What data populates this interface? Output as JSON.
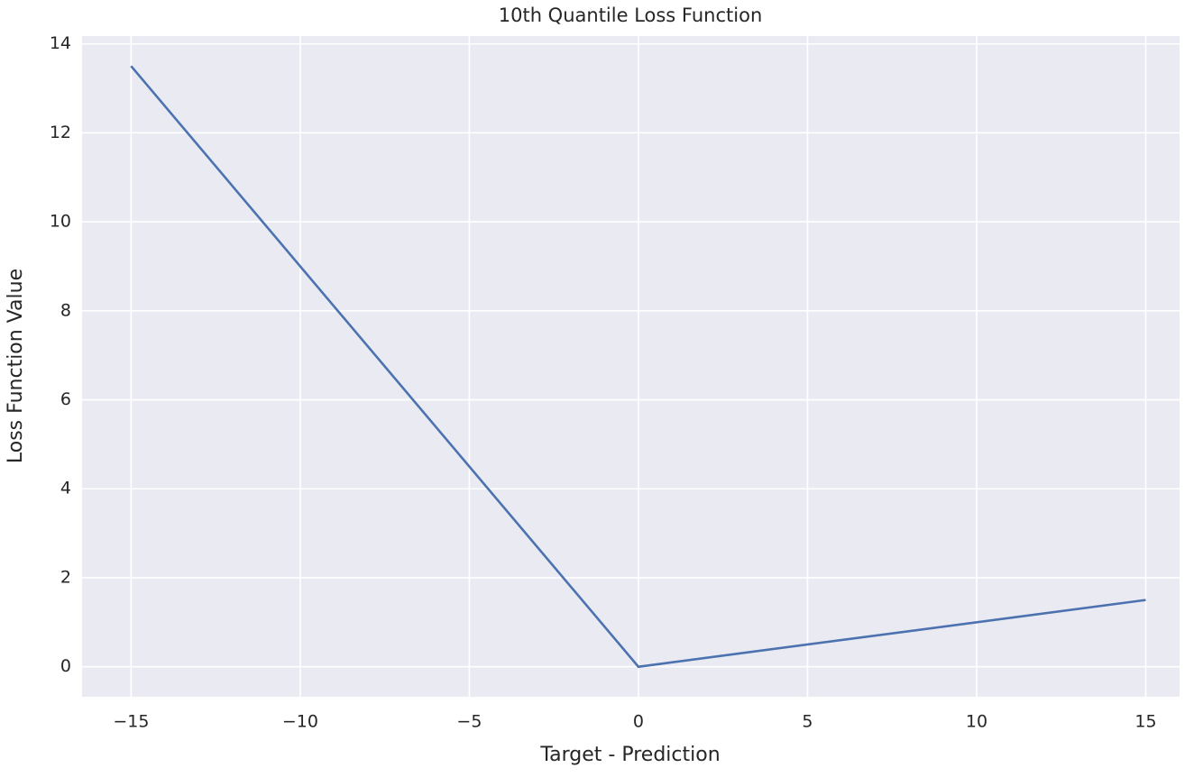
{
  "chart_data": {
    "type": "line",
    "title": "10th Quantile Loss Function",
    "xlabel": "Target - Prediction",
    "ylabel": "Loss Function Value",
    "x": [
      -15,
      0,
      15
    ],
    "series": [
      {
        "name": "loss",
        "color": "#4c72b0",
        "values": [
          13.5,
          0,
          1.5
        ]
      }
    ],
    "xlim": [
      -16.45,
      16.0
    ],
    "ylim": [
      -0.675,
      14.175
    ],
    "xticks": [
      {
        "value": -15,
        "label": "−15"
      },
      {
        "value": -10,
        "label": "−10"
      },
      {
        "value": -5,
        "label": "−5"
      },
      0,
      5,
      10,
      15
    ],
    "yticks": [
      0,
      2,
      4,
      6,
      8,
      10,
      12,
      14
    ],
    "grid": true
  }
}
